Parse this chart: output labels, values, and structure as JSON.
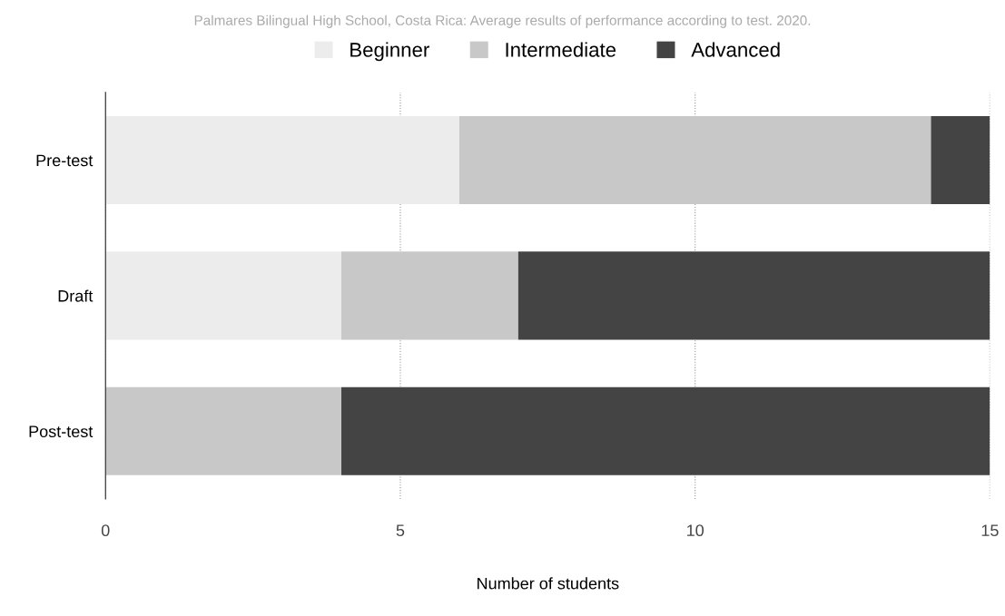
{
  "chart_data": {
    "type": "bar",
    "orientation": "horizontal",
    "stacked": true,
    "title": "Palmares Bilingual High School, Costa Rica: Average results of performance according to test. 2020.",
    "xlabel": "Number of students",
    "categories": [
      "Pre-test",
      "Draft",
      "Post-test"
    ],
    "series": [
      {
        "name": "Beginner",
        "color": "#ececec",
        "values": [
          6,
          4,
          0
        ]
      },
      {
        "name": "Intermediate",
        "color": "#c8c8c8",
        "values": [
          8,
          3,
          4
        ]
      },
      {
        "name": "Advanced",
        "color": "#444444",
        "values": [
          1,
          8,
          11
        ]
      }
    ],
    "xlim": [
      0,
      15
    ],
    "xticks": [
      0,
      5,
      10,
      15
    ],
    "grid": "x",
    "legend": "top"
  }
}
